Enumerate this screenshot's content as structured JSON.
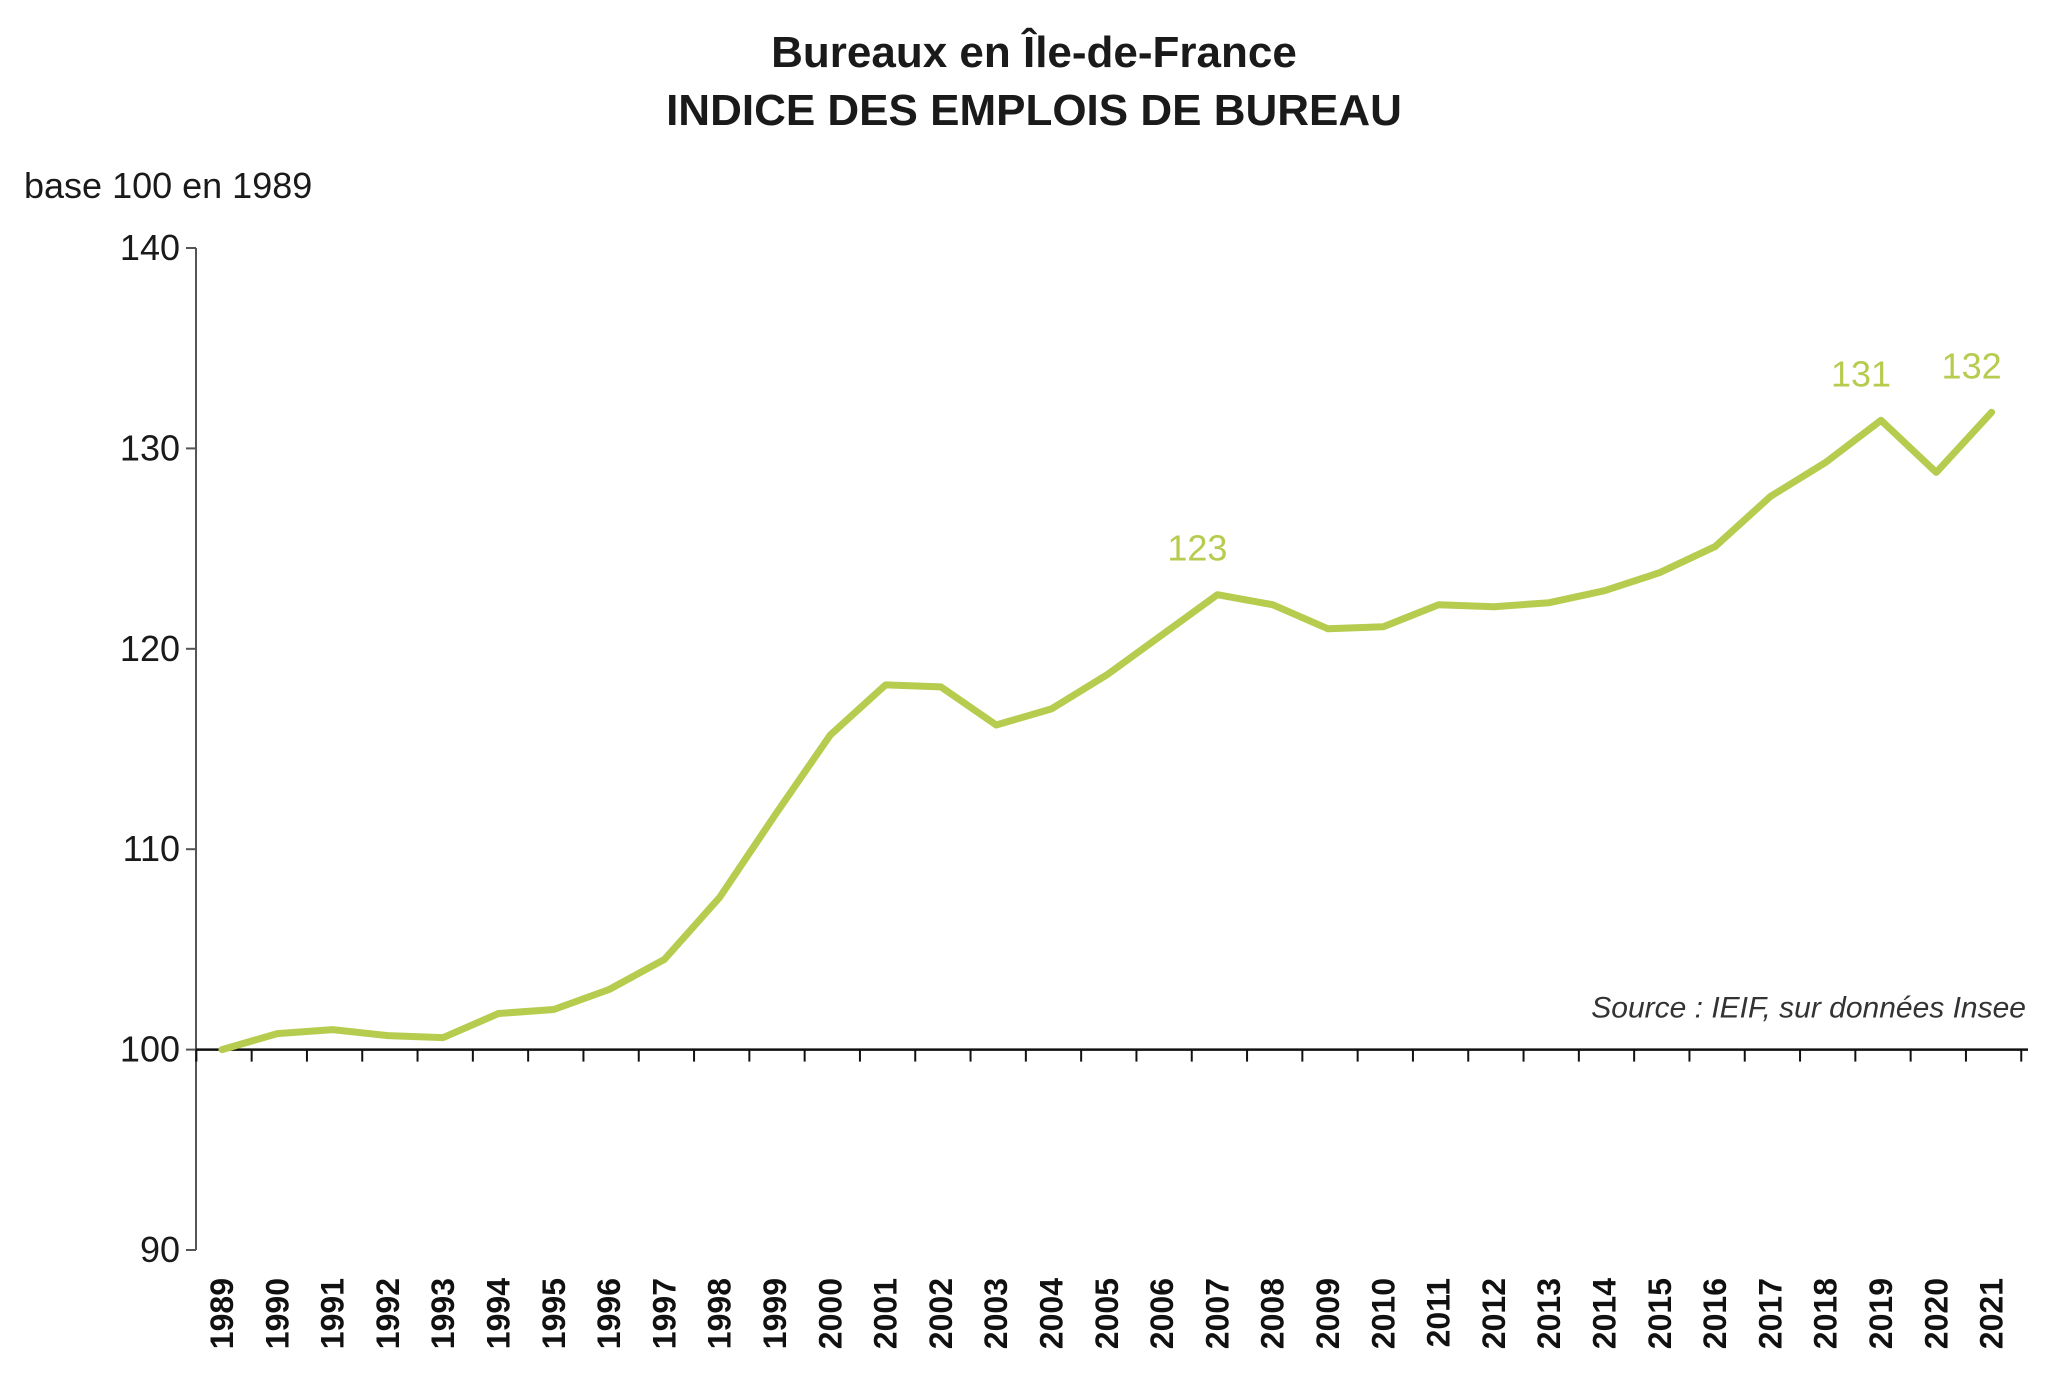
{
  "chart_data": {
    "type": "line",
    "title": "Bureaux en Île-de-France",
    "subtitle": "INDICE DES EMPLOIS DE BUREAU",
    "ylabel": "base 100 en 1989",
    "xlabel": "",
    "ylim": [
      90,
      140
    ],
    "yticks": [
      90,
      100,
      110,
      120,
      130,
      140
    ],
    "x_axis_crosses_at": 100,
    "grid": false,
    "legend": "none",
    "categories": [
      "1989",
      "1990",
      "1991",
      "1992",
      "1993",
      "1994",
      "1995",
      "1996",
      "1997",
      "1998",
      "1999",
      "2000",
      "2001",
      "2002",
      "2003",
      "2004",
      "2005",
      "2006",
      "2007",
      "2008",
      "2009",
      "2010",
      "2011",
      "2012",
      "2013",
      "2014",
      "2015",
      "2016",
      "2017",
      "2018",
      "2019",
      "2020",
      "2021"
    ],
    "series": [
      {
        "color": "#b5cc4f",
        "values": [
          100.0,
          100.8,
          101.0,
          100.7,
          100.6,
          101.8,
          102.0,
          103.0,
          104.5,
          107.6,
          111.7,
          115.7,
          118.2,
          118.1,
          116.2,
          117.0,
          118.7,
          120.7,
          122.7,
          122.2,
          121.0,
          121.1,
          122.2,
          122.1,
          122.3,
          122.9,
          123.8,
          125.1,
          127.6,
          129.3,
          131.4,
          128.8,
          131.8
        ]
      }
    ],
    "annotations": [
      {
        "x": "2007",
        "text": "123"
      },
      {
        "x": "2019",
        "text": "131"
      },
      {
        "x": "2021",
        "text": "132"
      }
    ],
    "source": "Source : IEIF, sur données Insee"
  }
}
